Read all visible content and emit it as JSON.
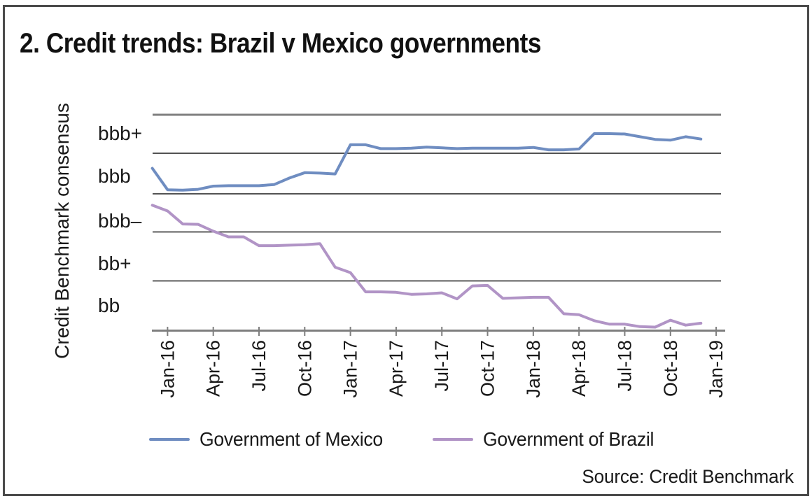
{
  "header": {
    "title": "2. Credit trends: Brazil v Mexico governments"
  },
  "source": {
    "label": "Source: Credit Benchmark"
  },
  "chart_data": {
    "type": "line",
    "title": "2. Credit trends: Brazil v Mexico governments",
    "xlabel": "",
    "ylabel": "Credit Benchmark consensus",
    "x": [
      "Dec-15",
      "Jan-16",
      "Feb-16",
      "Mar-16",
      "Apr-16",
      "May-16",
      "Jun-16",
      "Jul-16",
      "Aug-16",
      "Sep-16",
      "Oct-16",
      "Nov-16",
      "Dec-16",
      "Jan-17",
      "Feb-17",
      "Mar-17",
      "Apr-17",
      "May-17",
      "Jun-17",
      "Jul-17",
      "Aug-17",
      "Sep-17",
      "Oct-17",
      "Nov-17",
      "Dec-17",
      "Jan-18",
      "Feb-18",
      "Mar-18",
      "Apr-18",
      "May-18",
      "Jun-18",
      "Jul-18",
      "Aug-18",
      "Sep-18",
      "Oct-18",
      "Nov-18",
      "Dec-18"
    ],
    "x_tick_labels": [
      "Jan-16",
      "Apr-16",
      "Jul-16",
      "Oct-16",
      "Jan-17",
      "Apr-17",
      "Jul-17",
      "Oct-17",
      "Jan-18",
      "Apr-18",
      "Jul-18",
      "Oct-18",
      "Jan-19"
    ],
    "y_ticks": [
      {
        "label": "bbb+",
        "value": 5
      },
      {
        "label": "bbb",
        "value": 4
      },
      {
        "label": "bbb–",
        "value": 3
      },
      {
        "label": "bb+",
        "value": 2
      },
      {
        "label": "bb",
        "value": 1
      }
    ],
    "y_gridline_values": [
      5.5,
      4.5,
      3.5,
      2.5,
      1.5,
      0.5
    ],
    "ylim": [
      0.5,
      5.5
    ],
    "grid": "horizontal",
    "legend_position": "bottom",
    "series": [
      {
        "name": "Government of Mexico",
        "color": "#6f8dc1",
        "values": [
          4.13,
          3.6,
          3.59,
          3.61,
          3.69,
          3.7,
          3.7,
          3.7,
          3.73,
          3.89,
          4.02,
          4.01,
          3.99,
          4.72,
          4.72,
          4.62,
          4.62,
          4.63,
          4.66,
          4.64,
          4.62,
          4.63,
          4.63,
          4.63,
          4.63,
          4.65,
          4.59,
          4.59,
          4.61,
          5.01,
          5.01,
          5.0,
          4.93,
          4.86,
          4.84,
          4.93,
          4.87
        ]
      },
      {
        "name": "Government of Brazil",
        "color": "#b194c6",
        "values": [
          3.2,
          3.05,
          2.71,
          2.7,
          2.52,
          2.4,
          2.4,
          2.22,
          2.22,
          2.23,
          2.24,
          2.26,
          1.78,
          1.67,
          1.28,
          1.28,
          1.27,
          1.23,
          1.24,
          1.26,
          1.14,
          1.4,
          1.41,
          1.15,
          1.16,
          1.17,
          1.17,
          0.84,
          0.82,
          0.7,
          0.63,
          0.63,
          0.58,
          0.57,
          0.71,
          0.61,
          0.65
        ]
      }
    ]
  }
}
